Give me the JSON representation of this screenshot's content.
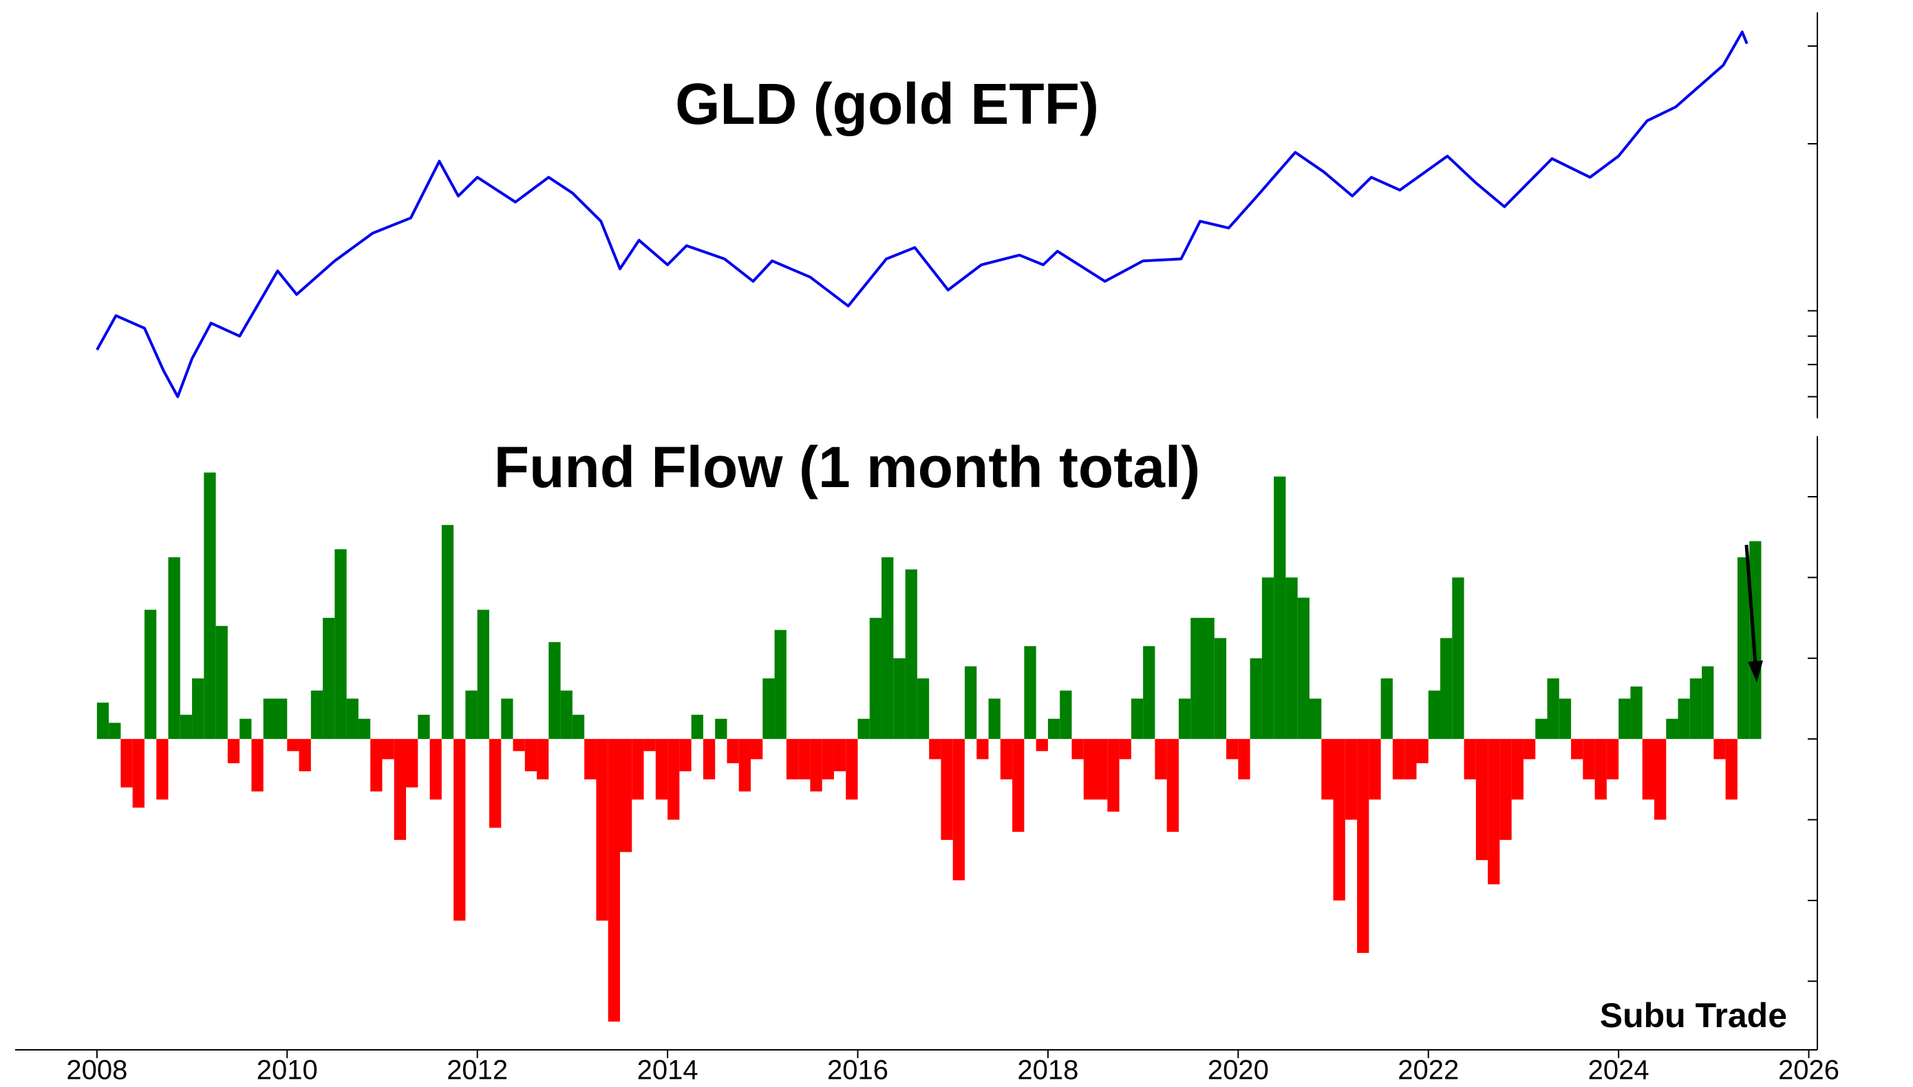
{
  "chart_data": [
    {
      "type": "line",
      "title": "GLD (gold ETF)",
      "color": "#0000ee",
      "log_scale": true,
      "xlim": [
        2007.14,
        2026.09
      ],
      "x": [
        2008.0,
        2008.2,
        2008.5,
        2008.7,
        2008.85,
        2009.0,
        2009.2,
        2009.5,
        2009.9,
        2010.1,
        2010.5,
        2010.9,
        2011.3,
        2011.6,
        2011.8,
        2012.0,
        2012.4,
        2012.75,
        2013.0,
        2013.3,
        2013.5,
        2013.7,
        2014.0,
        2014.2,
        2014.6,
        2014.9,
        2015.1,
        2015.5,
        2015.9,
        2016.3,
        2016.6,
        2016.95,
        2017.3,
        2017.7,
        2017.95,
        2018.1,
        2018.6,
        2019.0,
        2019.4,
        2019.6,
        2019.9,
        2020.2,
        2020.6,
        2020.9,
        2021.2,
        2021.4,
        2021.7,
        2022.2,
        2022.5,
        2022.8,
        2023.3,
        2023.7,
        2024.0,
        2024.3,
        2024.6,
        2024.85,
        2025.1,
        2025.3,
        2025.35
      ],
      "values": [
        85,
        98,
        93,
        78,
        70,
        82,
        95,
        90,
        118,
        107,
        123,
        138,
        147,
        186,
        161,
        174,
        157,
        174,
        163,
        145,
        119,
        134,
        121,
        131,
        124,
        113,
        123,
        115,
        102,
        124,
        130,
        109,
        121,
        126,
        121,
        128,
        113,
        123,
        124,
        145,
        141,
        161,
        193,
        178,
        161,
        174,
        165,
        190,
        170,
        154,
        188,
        174,
        190,
        220,
        233,
        254,
        277,
        318,
        303
      ],
      "ylim": [
        64,
        345
      ],
      "yticks": [
        70,
        80,
        90,
        100,
        200,
        300
      ]
    },
    {
      "type": "bar",
      "title": "Fund Flow (1 month total)",
      "positive_color": "#008000",
      "negative_color": "#ff0000",
      "annotation": "Subu Trade",
      "xlim": [
        2007.14,
        2026.09
      ],
      "xticks": [
        2008,
        2010,
        2012,
        2014,
        2016,
        2018,
        2020,
        2022,
        2024,
        2026
      ],
      "x": [
        2008.0,
        2008.125,
        2008.25,
        2008.375,
        2008.5,
        2008.625,
        2008.75,
        2008.875,
        2009.0,
        2009.125,
        2009.25,
        2009.375,
        2009.5,
        2009.625,
        2009.75,
        2009.875,
        2010.0,
        2010.125,
        2010.25,
        2010.375,
        2010.5,
        2010.625,
        2010.75,
        2010.875,
        2011.0,
        2011.125,
        2011.25,
        2011.375,
        2011.5,
        2011.625,
        2011.75,
        2011.875,
        2012.0,
        2012.125,
        2012.25,
        2012.375,
        2012.5,
        2012.625,
        2012.75,
        2012.875,
        2013.0,
        2013.125,
        2013.25,
        2013.375,
        2013.5,
        2013.625,
        2013.75,
        2013.875,
        2014.0,
        2014.125,
        2014.25,
        2014.375,
        2014.5,
        2014.625,
        2014.75,
        2014.875,
        2015.0,
        2015.125,
        2015.25,
        2015.375,
        2015.5,
        2015.625,
        2015.75,
        2015.875,
        2016.0,
        2016.125,
        2016.25,
        2016.375,
        2016.5,
        2016.625,
        2016.75,
        2016.875,
        2017.0,
        2017.125,
        2017.25,
        2017.375,
        2017.5,
        2017.625,
        2017.75,
        2017.875,
        2018.0,
        2018.125,
        2018.25,
        2018.375,
        2018.5,
        2018.625,
        2018.75,
        2018.875,
        2019.0,
        2019.125,
        2019.25,
        2019.375,
        2019.5,
        2019.625,
        2019.75,
        2019.875,
        2020.0,
        2020.125,
        2020.25,
        2020.375,
        2020.5,
        2020.625,
        2020.75,
        2020.875,
        2021.0,
        2021.125,
        2021.25,
        2021.375,
        2021.5,
        2021.625,
        2021.75,
        2021.875,
        2022.0,
        2022.125,
        2022.25,
        2022.375,
        2022.5,
        2022.625,
        2022.75,
        2022.875,
        2023.0,
        2023.125,
        2023.25,
        2023.375,
        2023.5,
        2023.625,
        2023.75,
        2023.875,
        2024.0,
        2024.125,
        2024.25,
        2024.375,
        2024.5,
        2024.625,
        2024.75,
        2024.875,
        2025.0,
        2025.125,
        2025.25,
        2025.375
      ],
      "values": [
        0.9,
        0.4,
        -1.2,
        -1.7,
        3.2,
        -1.5,
        4.5,
        0.6,
        1.5,
        6.6,
        2.8,
        -0.6,
        0.5,
        -1.3,
        1.0,
        1.0,
        -0.3,
        -0.8,
        1.2,
        3.0,
        4.7,
        1.0,
        0.5,
        -1.3,
        -0.5,
        -2.5,
        -1.2,
        0.6,
        -1.5,
        5.3,
        -4.5,
        1.2,
        3.2,
        -2.2,
        1.0,
        -0.3,
        -0.8,
        -1.0,
        2.4,
        1.2,
        0.6,
        -1.0,
        -4.5,
        -7.0,
        -2.8,
        -1.5,
        -0.3,
        -1.5,
        -2.0,
        -0.8,
        0.6,
        -1.0,
        0.5,
        -0.6,
        -1.3,
        -0.5,
        1.5,
        2.7,
        -1.0,
        -1.0,
        -1.3,
        -1.0,
        -0.8,
        -1.5,
        0.5,
        3.0,
        4.5,
        2.0,
        4.2,
        1.5,
        -0.5,
        -2.5,
        -3.5,
        1.8,
        -0.5,
        1.0,
        -1.0,
        -2.3,
        2.3,
        -0.3,
        0.5,
        1.2,
        -0.5,
        -1.5,
        -1.5,
        -1.8,
        -0.5,
        1.0,
        2.3,
        -1.0,
        -2.3,
        1.0,
        3.0,
        3.0,
        2.5,
        -0.5,
        -1.0,
        2.0,
        4.0,
        6.5,
        4.0,
        3.5,
        1.0,
        -1.5,
        -4.0,
        -2.0,
        -5.3,
        -1.5,
        1.5,
        -1.0,
        -1.0,
        -0.6,
        1.2,
        2.5,
        4.0,
        -1.0,
        -3.0,
        -3.6,
        -2.5,
        -1.5,
        -0.5,
        0.5,
        1.5,
        1.0,
        -0.5,
        -1.0,
        -1.5,
        -1.0,
        1.0,
        1.3,
        -1.5,
        -2.0,
        0.5,
        1.0,
        1.5,
        1.8,
        -0.5,
        -1.5,
        4.5,
        4.9
      ],
      "ylim": [
        -7.7,
        7.5
      ],
      "yticks": [
        -6,
        -4,
        -2,
        0,
        2,
        4,
        6
      ]
    }
  ]
}
